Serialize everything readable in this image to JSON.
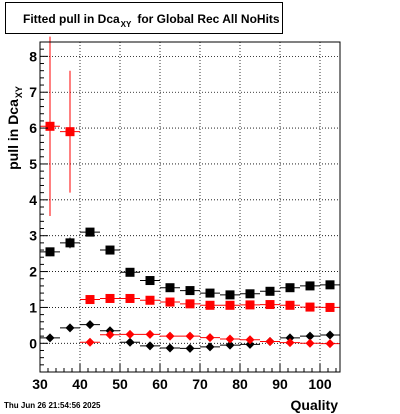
{
  "title": {
    "prefix": "Fitted pull in Dca",
    "subscript": "XY",
    "suffix": "for Global Rec All NoHits"
  },
  "datestamp": "Thu Jun 26 21:54:56 2025",
  "chart_data": {
    "type": "scatter",
    "xlabel": "Quality",
    "ylabel": "pull in Dca",
    "ylabel_subscript": "XY",
    "xlim": [
      30,
      105
    ],
    "ylim": [
      -0.8,
      8.4
    ],
    "x_ticks": [
      30,
      40,
      50,
      60,
      70,
      80,
      90,
      100
    ],
    "y_ticks": [
      0,
      1,
      2,
      3,
      4,
      5,
      6,
      7,
      8
    ],
    "grid": true,
    "series": [
      {
        "marker": "square",
        "color": "#000000",
        "points": [
          {
            "x": 32.5,
            "y": 2.55,
            "err": 0.12
          },
          {
            "x": 37.5,
            "y": 2.8,
            "err": 0.15
          },
          {
            "x": 42.5,
            "y": 3.1,
            "err": 0.1
          },
          {
            "x": 47.5,
            "y": 2.6,
            "err": 0.06
          },
          {
            "x": 52.5,
            "y": 1.98,
            "err": 0.05
          },
          {
            "x": 57.5,
            "y": 1.75,
            "err": 0.05
          },
          {
            "x": 62.5,
            "y": 1.55,
            "err": 0.04
          },
          {
            "x": 67.5,
            "y": 1.47,
            "err": 0.04
          },
          {
            "x": 72.5,
            "y": 1.4,
            "err": 0.04
          },
          {
            "x": 77.5,
            "y": 1.35,
            "err": 0.04
          },
          {
            "x": 82.5,
            "y": 1.38,
            "err": 0.04
          },
          {
            "x": 87.5,
            "y": 1.45,
            "err": 0.04
          },
          {
            "x": 92.5,
            "y": 1.55,
            "err": 0.04
          },
          {
            "x": 97.5,
            "y": 1.6,
            "err": 0.04
          },
          {
            "x": 102.5,
            "y": 1.63,
            "err": 0.04
          }
        ]
      },
      {
        "marker": "square",
        "color": "#ff0000",
        "points": [
          {
            "x": 32.5,
            "y": 6.05,
            "err": 2.5
          },
          {
            "x": 37.5,
            "y": 5.9,
            "err": 1.7
          },
          {
            "x": 42.5,
            "y": 1.22,
            "err": 0.06
          },
          {
            "x": 47.5,
            "y": 1.25,
            "err": 0.05
          },
          {
            "x": 52.5,
            "y": 1.25,
            "err": 0.04
          },
          {
            "x": 57.5,
            "y": 1.2,
            "err": 0.04
          },
          {
            "x": 62.5,
            "y": 1.15,
            "err": 0.04
          },
          {
            "x": 67.5,
            "y": 1.1,
            "err": 0.04
          },
          {
            "x": 72.5,
            "y": 1.06,
            "err": 0.04
          },
          {
            "x": 77.5,
            "y": 1.06,
            "err": 0.04
          },
          {
            "x": 82.5,
            "y": 1.07,
            "err": 0.04
          },
          {
            "x": 87.5,
            "y": 1.08,
            "err": 0.04
          },
          {
            "x": 92.5,
            "y": 1.06,
            "err": 0.04
          },
          {
            "x": 97.5,
            "y": 1.01,
            "err": 0.04
          },
          {
            "x": 102.5,
            "y": 1.0,
            "err": 0.04
          }
        ]
      },
      {
        "marker": "diamond",
        "color": "#000000",
        "points": [
          {
            "x": 32.5,
            "y": 0.15,
            "err": 0.1
          },
          {
            "x": 37.5,
            "y": 0.43,
            "err": 0.1
          },
          {
            "x": 42.5,
            "y": 0.52,
            "err": 0.05
          },
          {
            "x": 47.5,
            "y": 0.35,
            "err": 0.04
          },
          {
            "x": 52.5,
            "y": 0.03,
            "err": 0.03
          },
          {
            "x": 57.5,
            "y": -0.07,
            "err": 0.03
          },
          {
            "x": 62.5,
            "y": -0.13,
            "err": 0.03
          },
          {
            "x": 67.5,
            "y": -0.14,
            "err": 0.03
          },
          {
            "x": 72.5,
            "y": -0.1,
            "err": 0.03
          },
          {
            "x": 77.5,
            "y": -0.05,
            "err": 0.03
          },
          {
            "x": 82.5,
            "y": -0.03,
            "err": 0.03
          },
          {
            "x": 87.5,
            "y": 0.05,
            "err": 0.03
          },
          {
            "x": 92.5,
            "y": 0.15,
            "err": 0.03
          },
          {
            "x": 97.5,
            "y": 0.2,
            "err": 0.03
          },
          {
            "x": 102.5,
            "y": 0.23,
            "err": 0.03
          }
        ]
      },
      {
        "marker": "diamond",
        "color": "#ff0000",
        "points": [
          {
            "x": 42.5,
            "y": 0.03,
            "err": 0.03
          },
          {
            "x": 47.5,
            "y": 0.24,
            "err": 0.03
          },
          {
            "x": 52.5,
            "y": 0.25,
            "err": 0.03
          },
          {
            "x": 57.5,
            "y": 0.25,
            "err": 0.03
          },
          {
            "x": 62.5,
            "y": 0.2,
            "err": 0.03
          },
          {
            "x": 67.5,
            "y": 0.2,
            "err": 0.03
          },
          {
            "x": 72.5,
            "y": 0.16,
            "err": 0.03
          },
          {
            "x": 77.5,
            "y": 0.12,
            "err": 0.03
          },
          {
            "x": 82.5,
            "y": 0.1,
            "err": 0.03
          },
          {
            "x": 87.5,
            "y": 0.05,
            "err": 0.03
          },
          {
            "x": 92.5,
            "y": 0.02,
            "err": 0.03
          },
          {
            "x": 97.5,
            "y": 0.0,
            "err": 0.03
          },
          {
            "x": 102.5,
            "y": -0.01,
            "err": 0.03
          }
        ]
      }
    ]
  }
}
